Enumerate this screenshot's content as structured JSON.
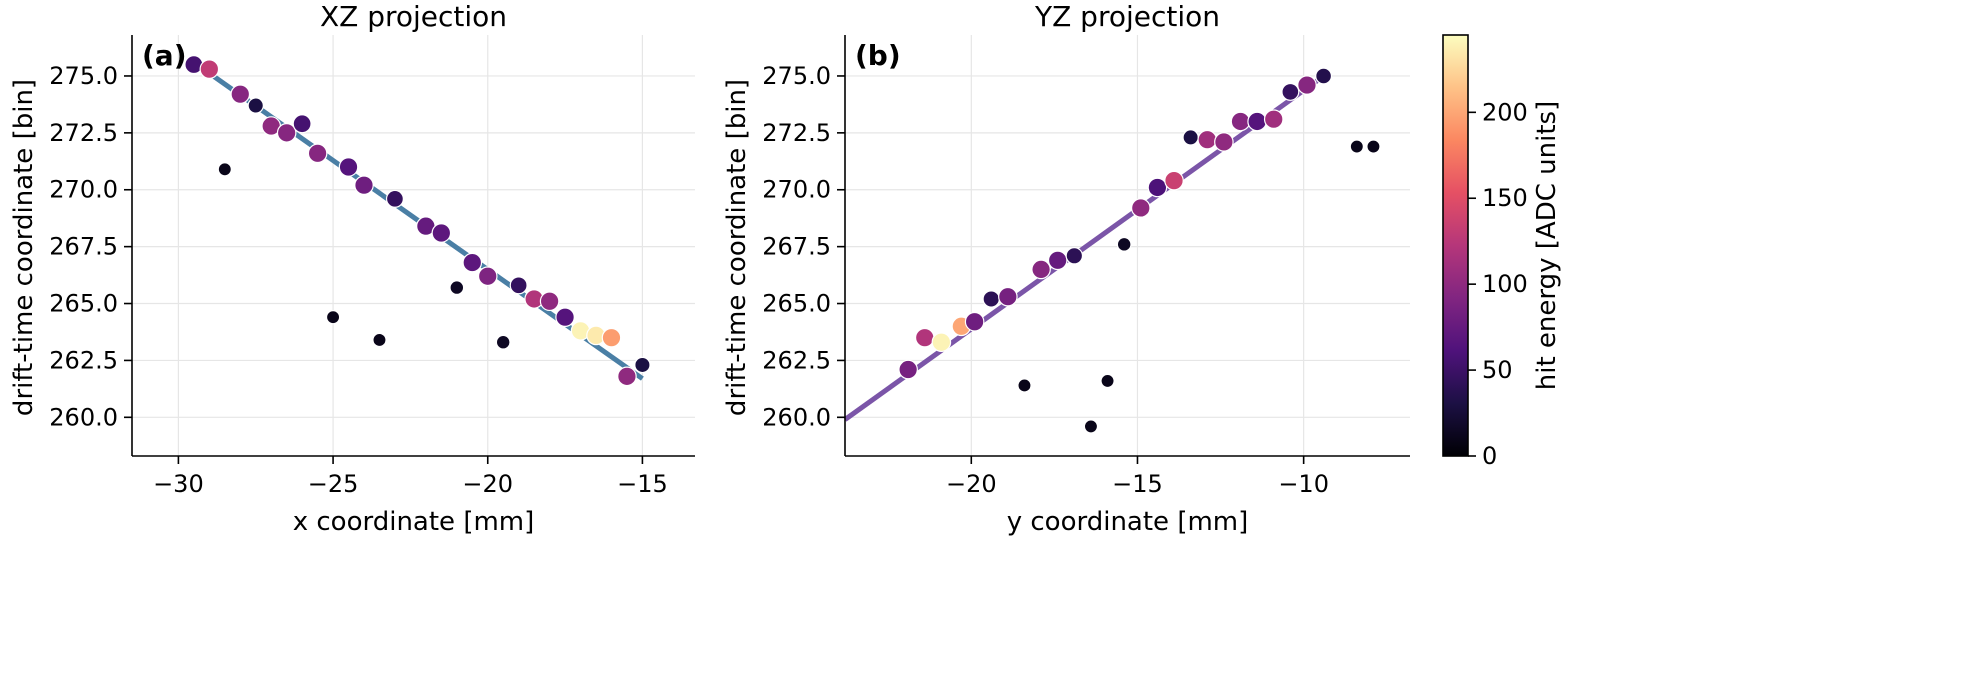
{
  "chart_data": [
    {
      "type": "scatter",
      "panel_label": "(a)",
      "title": "XZ projection",
      "xlabel": "x coordinate [mm]",
      "ylabel": "drift-time coordinate [bin]",
      "xlim": [
        -31.5,
        -13.3
      ],
      "ylim": [
        258.3,
        276.8
      ],
      "xticks": [
        -30,
        -25,
        -20,
        -15
      ],
      "yticks": [
        260.0,
        262.5,
        265.0,
        267.5,
        270.0,
        272.5,
        275.0
      ],
      "grid": true,
      "fit_line": {
        "color": "#4a7fa5",
        "x": [
          -29.5,
          -15.0
        ],
        "y": [
          275.6,
          261.7
        ]
      },
      "points": [
        {
          "x": -29.5,
          "y": 275.5,
          "e": 55
        },
        {
          "x": -29.0,
          "y": 275.3,
          "e": 130
        },
        {
          "x": -28.0,
          "y": 274.2,
          "e": 95
        },
        {
          "x": -27.5,
          "y": 273.7,
          "e": 30
        },
        {
          "x": -27.0,
          "y": 272.8,
          "e": 100
        },
        {
          "x": -26.5,
          "y": 272.5,
          "e": 95
        },
        {
          "x": -26.0,
          "y": 272.9,
          "e": 55
        },
        {
          "x": -25.5,
          "y": 271.6,
          "e": 95
        },
        {
          "x": -24.5,
          "y": 271.0,
          "e": 65
        },
        {
          "x": -24.0,
          "y": 270.2,
          "e": 80
        },
        {
          "x": -23.0,
          "y": 269.6,
          "e": 45
        },
        {
          "x": -22.0,
          "y": 268.4,
          "e": 75
        },
        {
          "x": -21.5,
          "y": 268.1,
          "e": 70
        },
        {
          "x": -20.5,
          "y": 266.8,
          "e": 70
        },
        {
          "x": -20.0,
          "y": 266.2,
          "e": 90
        },
        {
          "x": -19.0,
          "y": 265.8,
          "e": 45
        },
        {
          "x": -18.5,
          "y": 265.2,
          "e": 120
        },
        {
          "x": -18.0,
          "y": 265.1,
          "e": 100
        },
        {
          "x": -17.5,
          "y": 264.4,
          "e": 65
        },
        {
          "x": -17.0,
          "y": 263.8,
          "e": 240
        },
        {
          "x": -16.5,
          "y": 263.6,
          "e": 235
        },
        {
          "x": -16.0,
          "y": 263.5,
          "e": 195
        },
        {
          "x": -15.5,
          "y": 261.8,
          "e": 100
        },
        {
          "x": -15.0,
          "y": 262.3,
          "e": 30
        },
        {
          "x": -28.5,
          "y": 270.9,
          "e": 10
        },
        {
          "x": -25.0,
          "y": 264.4,
          "e": 10
        },
        {
          "x": -23.5,
          "y": 263.4,
          "e": 10
        },
        {
          "x": -21.0,
          "y": 265.7,
          "e": 15
        },
        {
          "x": -19.5,
          "y": 263.3,
          "e": 15
        }
      ]
    },
    {
      "type": "scatter",
      "panel_label": "(b)",
      "title": "YZ projection",
      "xlabel": "y coordinate [mm]",
      "ylabel": "drift-time coordinate [bin]",
      "xlim": [
        -23.8,
        -6.8
      ],
      "ylim": [
        258.3,
        276.8
      ],
      "xticks": [
        -20,
        -15,
        -10
      ],
      "yticks": [
        260.0,
        262.5,
        265.0,
        267.5,
        270.0,
        272.5,
        275.0
      ],
      "grid": true,
      "fit_line": {
        "color": "#7b55a8",
        "x": [
          -23.8,
          -9.3
        ],
        "y": [
          259.9,
          275.1
        ]
      },
      "points": [
        {
          "x": -21.9,
          "y": 262.1,
          "e": 85
        },
        {
          "x": -21.4,
          "y": 263.5,
          "e": 120
        },
        {
          "x": -20.9,
          "y": 263.3,
          "e": 240
        },
        {
          "x": -20.3,
          "y": 264.0,
          "e": 200
        },
        {
          "x": -19.9,
          "y": 264.2,
          "e": 80
        },
        {
          "x": -19.4,
          "y": 265.2,
          "e": 40
        },
        {
          "x": -18.9,
          "y": 265.3,
          "e": 85
        },
        {
          "x": -17.9,
          "y": 266.5,
          "e": 95
        },
        {
          "x": -17.4,
          "y": 266.9,
          "e": 75
        },
        {
          "x": -16.9,
          "y": 267.1,
          "e": 40
        },
        {
          "x": -14.9,
          "y": 269.2,
          "e": 100
        },
        {
          "x": -14.4,
          "y": 270.1,
          "e": 60
        },
        {
          "x": -13.9,
          "y": 270.4,
          "e": 135
        },
        {
          "x": -13.4,
          "y": 272.3,
          "e": 30
        },
        {
          "x": -12.9,
          "y": 272.2,
          "e": 110
        },
        {
          "x": -12.4,
          "y": 272.1,
          "e": 100
        },
        {
          "x": -11.9,
          "y": 273.0,
          "e": 95
        },
        {
          "x": -11.4,
          "y": 273.0,
          "e": 65
        },
        {
          "x": -10.9,
          "y": 273.1,
          "e": 110
        },
        {
          "x": -10.4,
          "y": 274.3,
          "e": 45
        },
        {
          "x": -9.9,
          "y": 274.6,
          "e": 95
        },
        {
          "x": -9.4,
          "y": 275.0,
          "e": 35
        },
        {
          "x": -15.4,
          "y": 267.6,
          "e": 15
        },
        {
          "x": -18.4,
          "y": 261.4,
          "e": 10
        },
        {
          "x": -15.9,
          "y": 261.6,
          "e": 10
        },
        {
          "x": -16.4,
          "y": 259.6,
          "e": 10
        },
        {
          "x": -8.4,
          "y": 271.9,
          "e": 10
        },
        {
          "x": -7.9,
          "y": 271.9,
          "e": 10
        }
      ]
    }
  ],
  "colorbar": {
    "label": "hit energy [ADC units]",
    "range": [
      0,
      245
    ],
    "ticks": [
      0,
      50,
      100,
      150,
      200
    ],
    "colormap": "magma"
  }
}
